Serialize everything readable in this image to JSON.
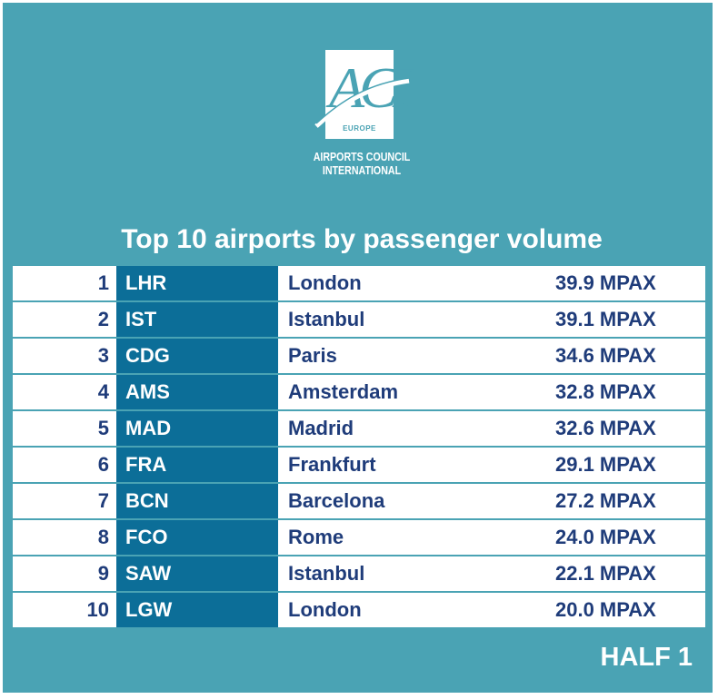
{
  "colors": {
    "background": "#4aa3b4",
    "code_cell": "#0c6e98",
    "text_dark": "#1f3c7a",
    "text_light": "#ffffff"
  },
  "logo": {
    "letters": "ACI",
    "region": "EUROPE",
    "line1": "AIRPORTS COUNCIL",
    "line2": "INTERNATIONAL"
  },
  "title": "Top 10 airports by passenger volume",
  "rows": [
    {
      "rank": "1",
      "code": "LHR",
      "city": "London",
      "volume": "39.9 MPAX"
    },
    {
      "rank": "2",
      "code": "IST",
      "city": "Istanbul",
      "volume": "39.1 MPAX"
    },
    {
      "rank": "3",
      "code": "CDG",
      "city": "Paris",
      "volume": "34.6 MPAX"
    },
    {
      "rank": "4",
      "code": "AMS",
      "city": "Amsterdam",
      "volume": "32.8 MPAX"
    },
    {
      "rank": "5",
      "code": "MAD",
      "city": "Madrid",
      "volume": "32.6 MPAX"
    },
    {
      "rank": "6",
      "code": "FRA",
      "city": "Frankfurt",
      "volume": "29.1 MPAX"
    },
    {
      "rank": "7",
      "code": "BCN",
      "city": "Barcelona",
      "volume": "27.2 MPAX"
    },
    {
      "rank": "8",
      "code": "FCO",
      "city": "Rome",
      "volume": "24.0 MPAX"
    },
    {
      "rank": "9",
      "code": "SAW",
      "city": "Istanbul",
      "volume": "22.1 MPAX"
    },
    {
      "rank": "10",
      "code": "LGW",
      "city": "London",
      "volume": "20.0 MPAX"
    }
  ],
  "period": "HALF 1"
}
